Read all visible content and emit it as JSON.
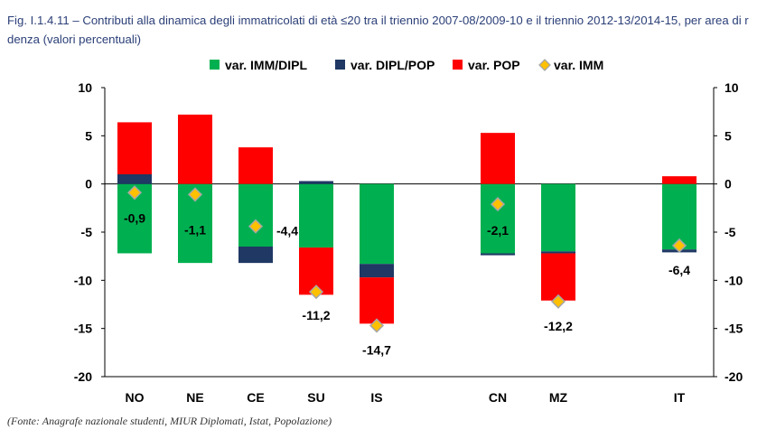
{
  "title_line1": "Fig. I.1.4.11 – Contributi alla dinamica degli immatricolati di età ≤20 tra il triennio 2007-08/2009-10 e il triennio 2012-13/2014-15, per area di r",
  "title_line2": "denza (valori percentuali)",
  "source": "(Fonte: Anagrafe nazionale studenti, MIUR Diplomati, Istat, Popolazione)",
  "colors": {
    "imm_dipl": "#00b050",
    "dipl_pop": "#1f3864",
    "pop": "#ff0000",
    "imm_marker_fill": "#ffc000",
    "imm_marker_stroke": "#a6a6a6"
  },
  "chart_data": {
    "type": "bar",
    "stacked": true,
    "categories": [
      "NO",
      "NE",
      "CE",
      "SU",
      "IS",
      "CN",
      "MZ",
      "IT"
    ],
    "series": [
      {
        "name": "var. IMM/DIPL",
        "values": [
          -7.2,
          -8.2,
          -6.5,
          -6.6,
          -8.3,
          -7.2,
          -7.0,
          -6.8
        ]
      },
      {
        "name": "var. DIPL/POP",
        "values": [
          1.0,
          0.0,
          -1.7,
          0.3,
          -1.4,
          -0.2,
          -0.2,
          -0.3
        ]
      },
      {
        "name": "var. POP",
        "values": [
          5.4,
          7.2,
          3.8,
          -4.9,
          -4.8,
          5.3,
          -4.9,
          0.8
        ]
      }
    ],
    "marker_series": {
      "name": "var. IMM",
      "values": [
        -0.9,
        -1.1,
        -4.4,
        -11.2,
        -14.7,
        -2.1,
        -12.2,
        -6.4
      ]
    },
    "data_labels": [
      "-0,9",
      "-1,1",
      "-4,4",
      "-11,2",
      "-14,7",
      "-2,1",
      "-12,2",
      "-6,4"
    ],
    "ylim": [
      -20,
      10
    ],
    "yticks": [
      10,
      5,
      0,
      -5,
      -10,
      -15,
      -20
    ],
    "ytick_labels": [
      "10",
      "5",
      "0",
      "-5",
      "-10",
      "-15",
      "-20"
    ],
    "secondary_axis": true,
    "legend_position": "top",
    "grid": false
  }
}
